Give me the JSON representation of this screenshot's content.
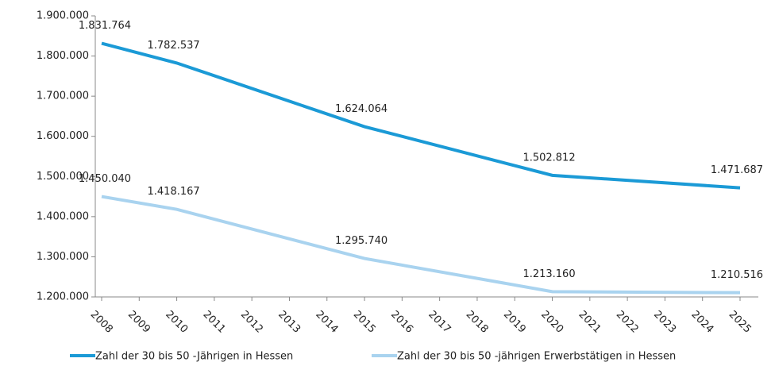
{
  "chart_data": {
    "type": "line",
    "x": [
      2008,
      2010,
      2015,
      2020,
      2025
    ],
    "xlim": [
      2008,
      2025
    ],
    "xticks": [
      2008,
      2009,
      2010,
      2011,
      2012,
      2013,
      2014,
      2015,
      2016,
      2017,
      2018,
      2019,
      2020,
      2021,
      2022,
      2023,
      2024,
      2025
    ],
    "ylim": [
      1200000,
      1900000
    ],
    "yticks": [
      {
        "value": 1200000,
        "label": "1.200.000"
      },
      {
        "value": 1300000,
        "label": "1.300.000"
      },
      {
        "value": 1400000,
        "label": "1.400.000"
      },
      {
        "value": 1500000,
        "label": "1.500.000"
      },
      {
        "value": 1600000,
        "label": "1.600.000"
      },
      {
        "value": 1700000,
        "label": "1.700.000"
      },
      {
        "value": 1800000,
        "label": "1.800.000"
      },
      {
        "value": 1900000,
        "label": "1.900.000"
      }
    ],
    "legend": "bottom",
    "series": [
      {
        "name": "Zahl der 30 bis 50 -Jährigen in Hessen",
        "color": "#1b9ad6",
        "values": [
          1831764,
          1782537,
          1624064,
          1502812,
          1471687
        ],
        "value_labels": [
          "1.831.764",
          "1.782.537",
          "1.624.064",
          "1.502.812",
          "1.471.687"
        ]
      },
      {
        "name": "Zahl der 30 bis 50 -jährigen Erwerbstätigen in Hessen",
        "color": "#a9d3ef",
        "values": [
          1450040,
          1418167,
          1295740,
          1213160,
          1210516
        ],
        "value_labels": [
          "1.450.040",
          "1.418.167",
          "1.295.740",
          "1.213.160",
          "1.210.516"
        ]
      }
    ]
  }
}
